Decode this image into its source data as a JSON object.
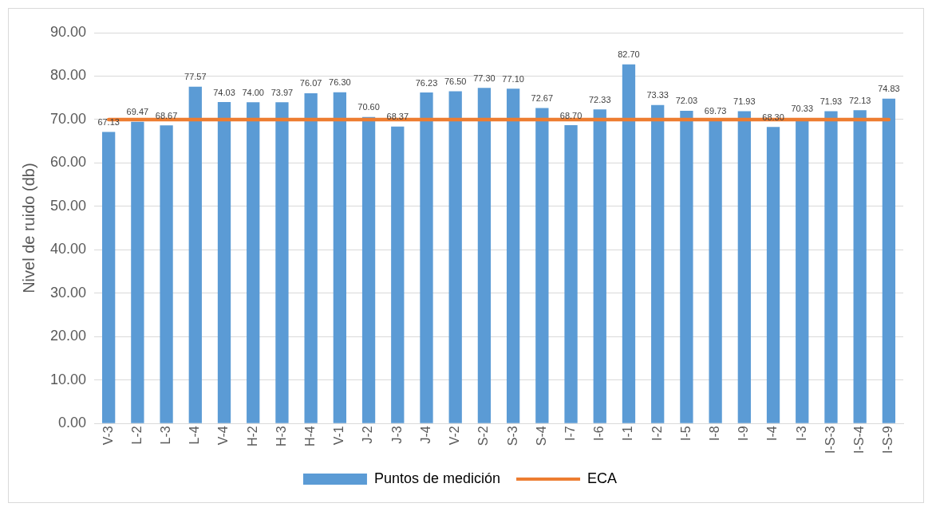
{
  "chart_data": {
    "type": "bar",
    "ylabel": "Nivel de ruido (db)",
    "categories": [
      "V-3",
      "L-2",
      "L-3",
      "L-4",
      "V-4",
      "H-2",
      "H-3",
      "H-4",
      "V-1",
      "J-2",
      "J-3",
      "J-4",
      "V-2",
      "S-2",
      "S-3",
      "S-4",
      "I-7",
      "I-6",
      "I-1",
      "I-2",
      "I-5",
      "I-8",
      "I-9",
      "I-4",
      "I-3",
      "I-S-3",
      "I-S-4",
      "I-S-9"
    ],
    "series": [
      {
        "name": "Puntos de medición",
        "color": "#5b9bd5",
        "values": [
          67.13,
          69.47,
          68.67,
          77.57,
          74.03,
          74.0,
          73.97,
          76.07,
          76.3,
          70.6,
          68.37,
          76.23,
          76.5,
          77.3,
          77.1,
          72.67,
          68.7,
          72.33,
          82.7,
          73.33,
          72.03,
          69.73,
          71.93,
          68.3,
          70.33,
          71.93,
          72.13,
          74.83
        ],
        "value_labels": [
          "67.13",
          "69.47",
          "68.67",
          "77.57",
          "74.03",
          "74.00",
          "73.97",
          "76.07",
          "76.30",
          "70.60",
          "68.37",
          "76.23",
          "76.50",
          "77.30",
          "77.10",
          "72.67",
          "68.70",
          "72.33",
          "82.70",
          "73.33",
          "72.03",
          "69.73",
          "71.93",
          "68.30",
          "70.33",
          "71.93",
          "72.13",
          "74.83"
        ]
      },
      {
        "name": "ECA",
        "type": "line",
        "color": "#ed7d31",
        "values": [
          70,
          70,
          70,
          70,
          70,
          70,
          70,
          70,
          70,
          70,
          70,
          70,
          70,
          70,
          70,
          70,
          70,
          70,
          70,
          70,
          70,
          70,
          70,
          70,
          70,
          70,
          70,
          70
        ]
      }
    ],
    "ylim": [
      0,
      90
    ],
    "yticks": [
      {
        "value": 0,
        "label": "0.00"
      },
      {
        "value": 10,
        "label": "10.00"
      },
      {
        "value": 20,
        "label": "20.00"
      },
      {
        "value": 30,
        "label": "30.00"
      },
      {
        "value": 40,
        "label": "40.00"
      },
      {
        "value": 50,
        "label": "50.00"
      },
      {
        "value": 60,
        "label": "60.00"
      },
      {
        "value": 70,
        "label": "70.00"
      },
      {
        "value": 80,
        "label": "80.00"
      },
      {
        "value": 90,
        "label": "90.00"
      }
    ],
    "grid": "y",
    "legend": "bottom",
    "marker": "none"
  }
}
